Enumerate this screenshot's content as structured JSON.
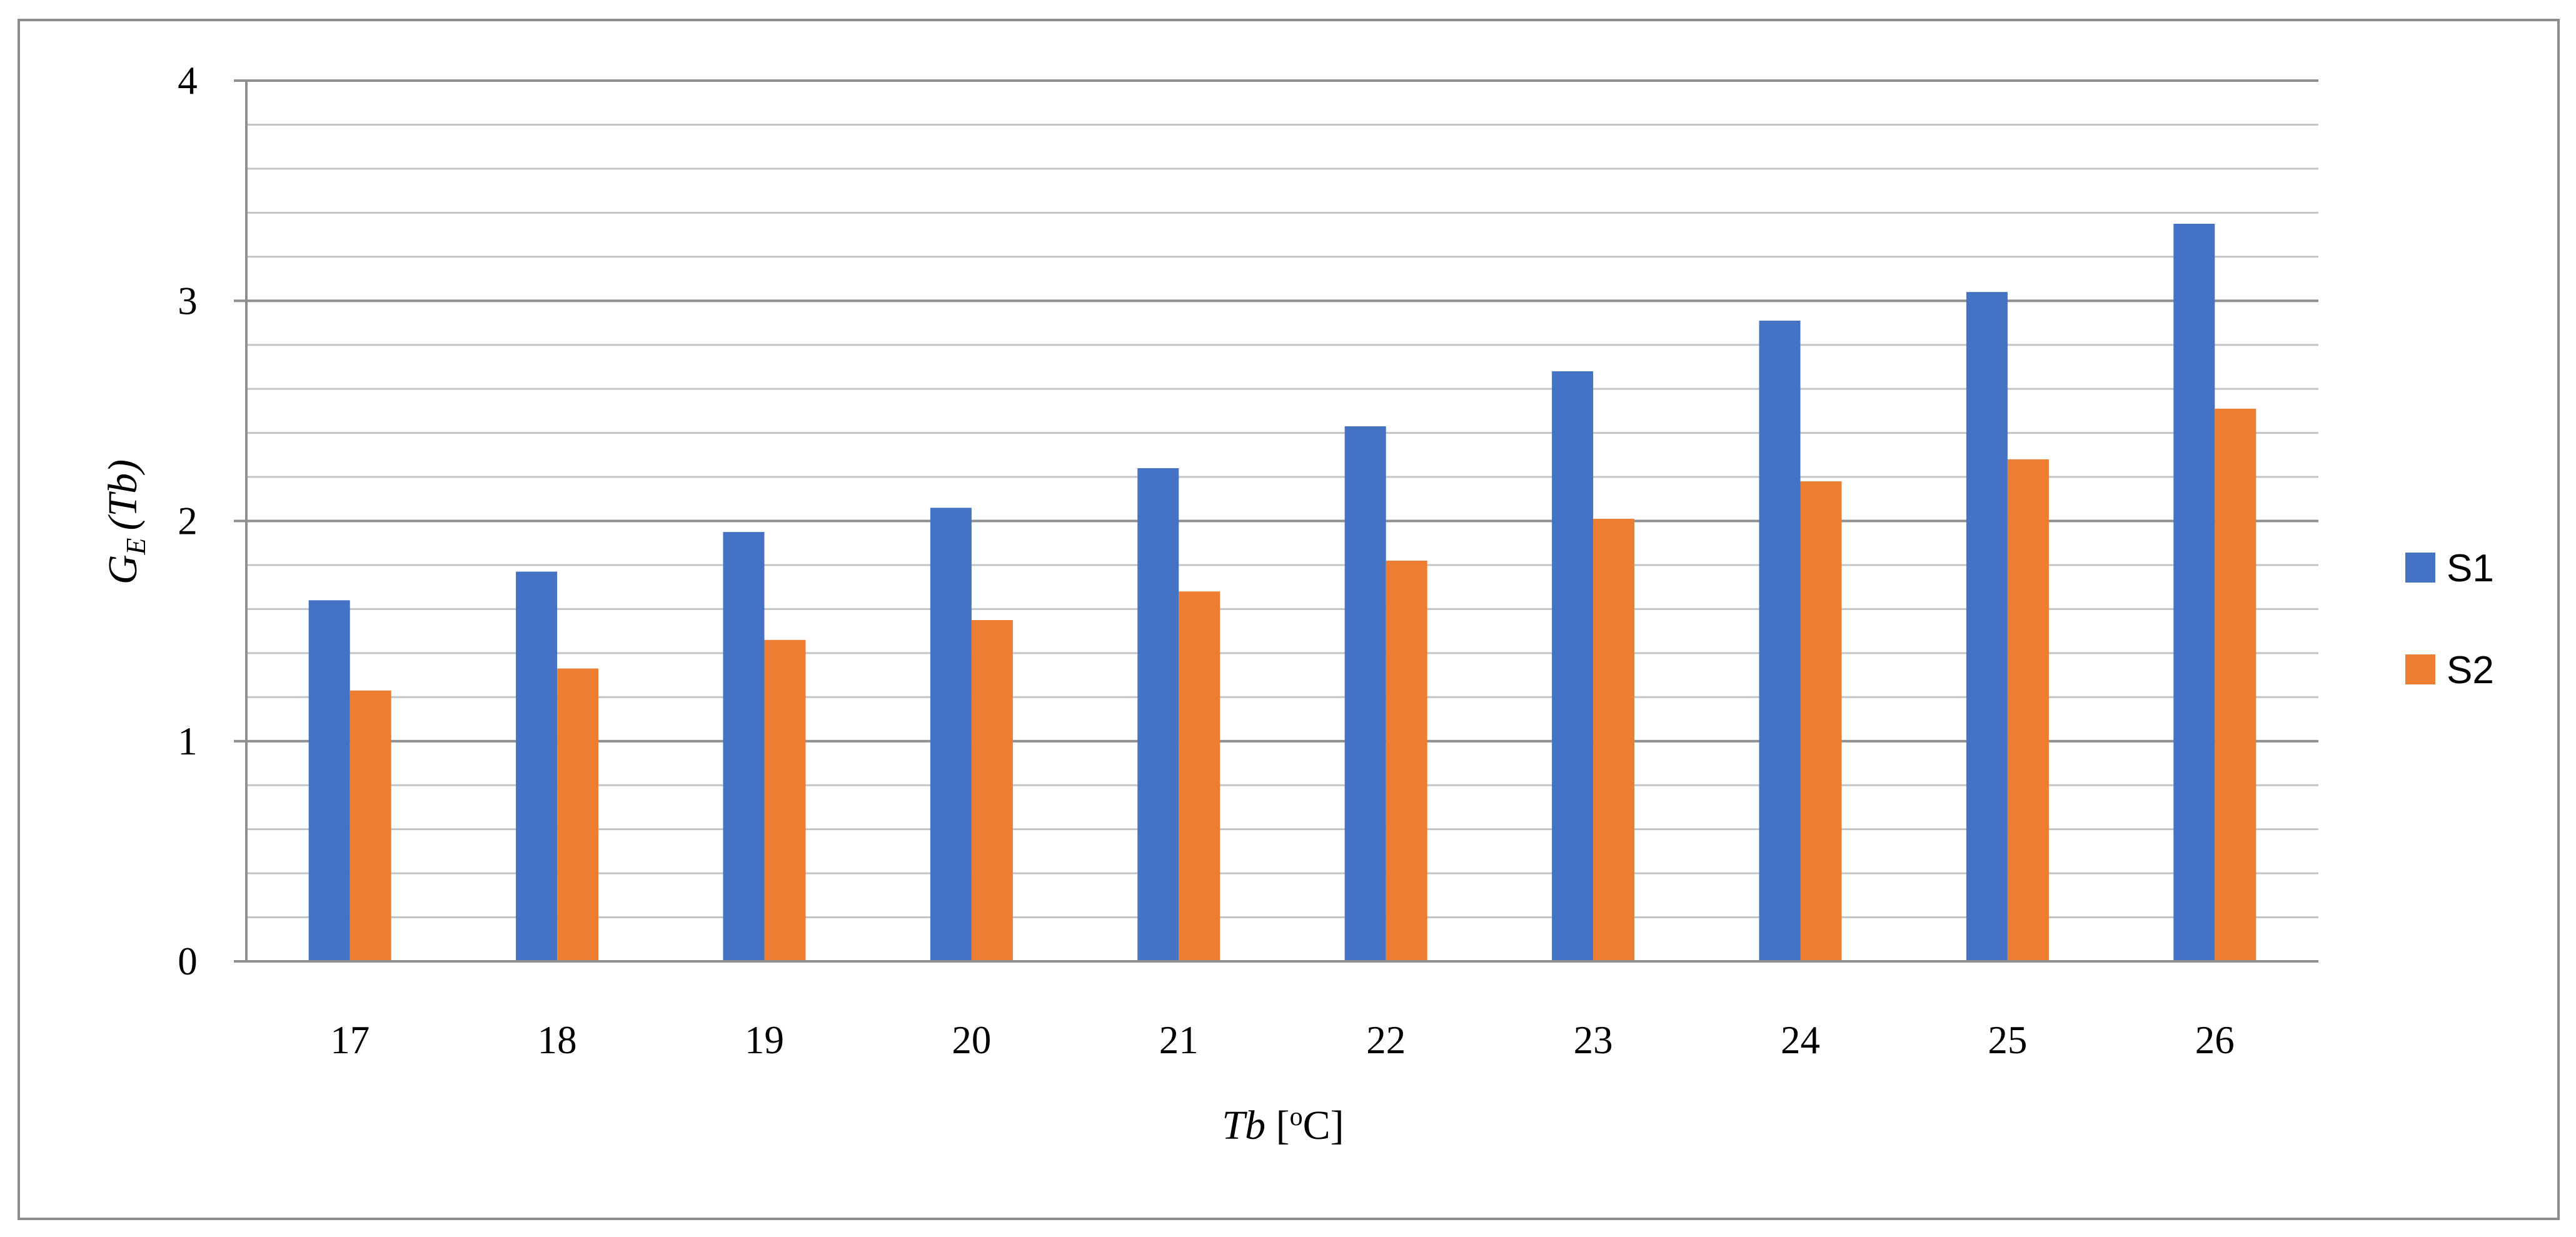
{
  "chart_data": {
    "type": "bar",
    "categories": [
      "17",
      "18",
      "19",
      "20",
      "21",
      "22",
      "23",
      "24",
      "25",
      "26"
    ],
    "series": [
      {
        "name": "S1",
        "color": "#4472C4",
        "values": [
          1.64,
          1.77,
          1.95,
          2.06,
          2.24,
          2.43,
          2.68,
          2.91,
          3.04,
          3.35
        ]
      },
      {
        "name": "S2",
        "color": "#ED7D31",
        "values": [
          1.23,
          1.33,
          1.46,
          1.55,
          1.68,
          1.82,
          2.01,
          2.18,
          2.28,
          2.51
        ]
      }
    ],
    "ylim": [
      0,
      4
    ],
    "y_ticks": [
      "0",
      "1",
      "2",
      "3",
      "4"
    ],
    "y_minor_step": 0.2,
    "grid": true,
    "legend_position": "right",
    "xlabel": {
      "main": "Tb",
      "unit_open": " [",
      "unit_sup": "o",
      "unit_close": "C]"
    },
    "ylabel": {
      "main": "G",
      "sub": "E",
      "arg": "(Tb)"
    }
  }
}
